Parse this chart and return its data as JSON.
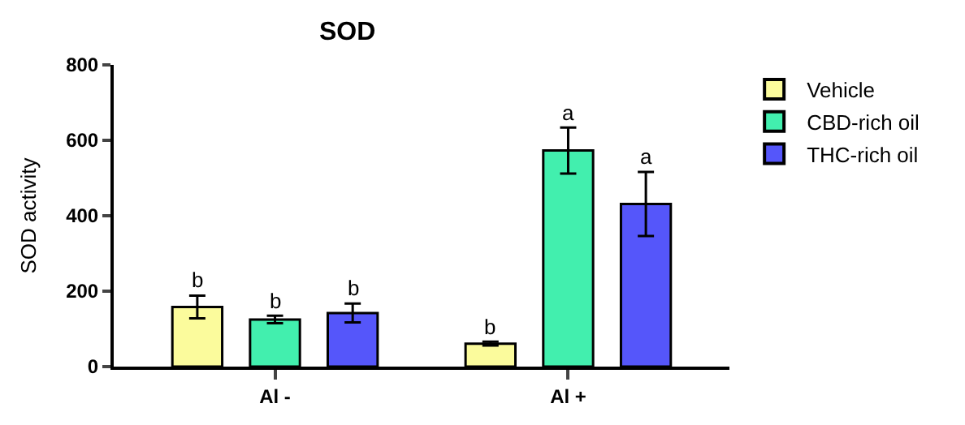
{
  "chart_data": {
    "type": "bar",
    "title": "SOD",
    "ylabel": "SOD activity",
    "categories": [
      "Al -",
      "Al +"
    ],
    "series": [
      {
        "name": "Vehicle",
        "color": "#fbfb9c",
        "values": [
          158,
          61
        ],
        "errors": [
          30,
          5
        ],
        "value_labels": [
          "b",
          "b"
        ]
      },
      {
        "name": "CBD-rich oil",
        "color": "#42efae",
        "values": [
          125,
          573
        ],
        "errors": [
          10,
          61
        ],
        "value_labels": [
          "b",
          "a"
        ]
      },
      {
        "name": "THC-rich oil",
        "color": "#5556fa",
        "values": [
          142,
          431
        ],
        "errors": [
          25,
          85
        ],
        "value_labels": [
          "b",
          "a"
        ]
      }
    ],
    "ylim": [
      0,
      800
    ],
    "yticks": [
      0,
      200,
      400,
      600,
      800
    ],
    "legend": "top right"
  }
}
